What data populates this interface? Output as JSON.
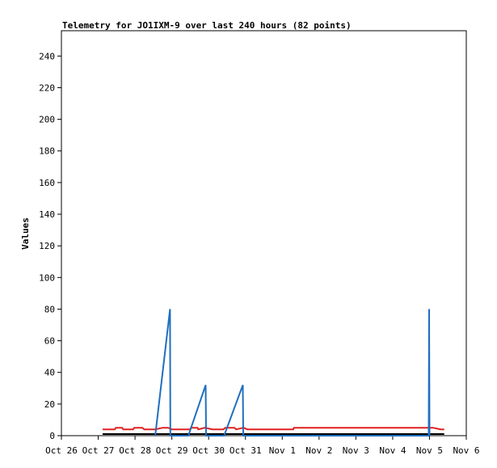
{
  "chart_data": {
    "type": "line",
    "title": "Telemetry for JO1IXM-9 over last 240 hours (82 points)",
    "xlabel": "",
    "ylabel": "Values",
    "ylim": [
      0,
      256
    ],
    "yticks": [
      0,
      20,
      40,
      60,
      80,
      100,
      120,
      140,
      160,
      180,
      200,
      220,
      240
    ],
    "xticks": [
      {
        "t": 0,
        "label": "Oct 26"
      },
      {
        "t": 1,
        "label": "Oct 27"
      },
      {
        "t": 2,
        "label": "Oct 28"
      },
      {
        "t": 3,
        "label": "Oct 29"
      },
      {
        "t": 4,
        "label": "Oct 30"
      },
      {
        "t": 5,
        "label": "Oct 31"
      },
      {
        "t": 6,
        "label": "Nov 1"
      },
      {
        "t": 7,
        "label": "Nov 2"
      },
      {
        "t": 8,
        "label": "Nov 3"
      },
      {
        "t": 9,
        "label": "Nov 4"
      },
      {
        "t": 10,
        "label": "Nov 5"
      },
      {
        "t": 11,
        "label": "Nov 6"
      }
    ],
    "xlim": [
      0,
      11
    ],
    "series": [
      {
        "color": "#e02020",
        "points": [
          [
            1.12,
            4
          ],
          [
            1.45,
            4
          ],
          [
            1.48,
            5
          ],
          [
            1.65,
            5
          ],
          [
            1.68,
            4
          ],
          [
            1.95,
            4
          ],
          [
            1.98,
            5
          ],
          [
            2.2,
            5
          ],
          [
            2.25,
            4
          ],
          [
            2.55,
            4
          ],
          [
            2.75,
            5
          ],
          [
            2.9,
            5
          ],
          [
            3.0,
            4
          ],
          [
            3.5,
            4
          ],
          [
            3.52,
            5
          ],
          [
            3.7,
            5
          ],
          [
            3.72,
            4
          ],
          [
            3.9,
            5
          ],
          [
            4.1,
            4
          ],
          [
            4.4,
            4
          ],
          [
            4.45,
            5
          ],
          [
            4.7,
            5
          ],
          [
            4.75,
            4
          ],
          [
            4.95,
            5
          ],
          [
            5.05,
            4
          ],
          [
            6.3,
            4
          ],
          [
            6.32,
            5
          ],
          [
            9.0,
            5
          ],
          [
            9.02,
            5
          ],
          [
            10.0,
            5
          ],
          [
            10.1,
            5
          ],
          [
            10.3,
            4
          ],
          [
            10.4,
            4
          ]
        ]
      },
      {
        "color": "#000000",
        "points": [
          [
            1.12,
            1
          ],
          [
            10.4,
            1
          ]
        ]
      },
      {
        "color": "#1f6fbf",
        "points": [
          [
            2.55,
            0
          ],
          [
            2.95,
            80
          ],
          [
            2.96,
            0
          ],
          [
            3.45,
            0
          ],
          [
            3.92,
            32
          ],
          [
            3.93,
            0
          ],
          [
            4.42,
            0
          ],
          [
            4.93,
            32
          ],
          [
            4.94,
            0
          ],
          [
            9.98,
            0
          ],
          [
            9.99,
            80
          ],
          [
            10.0,
            0
          ]
        ]
      }
    ]
  }
}
